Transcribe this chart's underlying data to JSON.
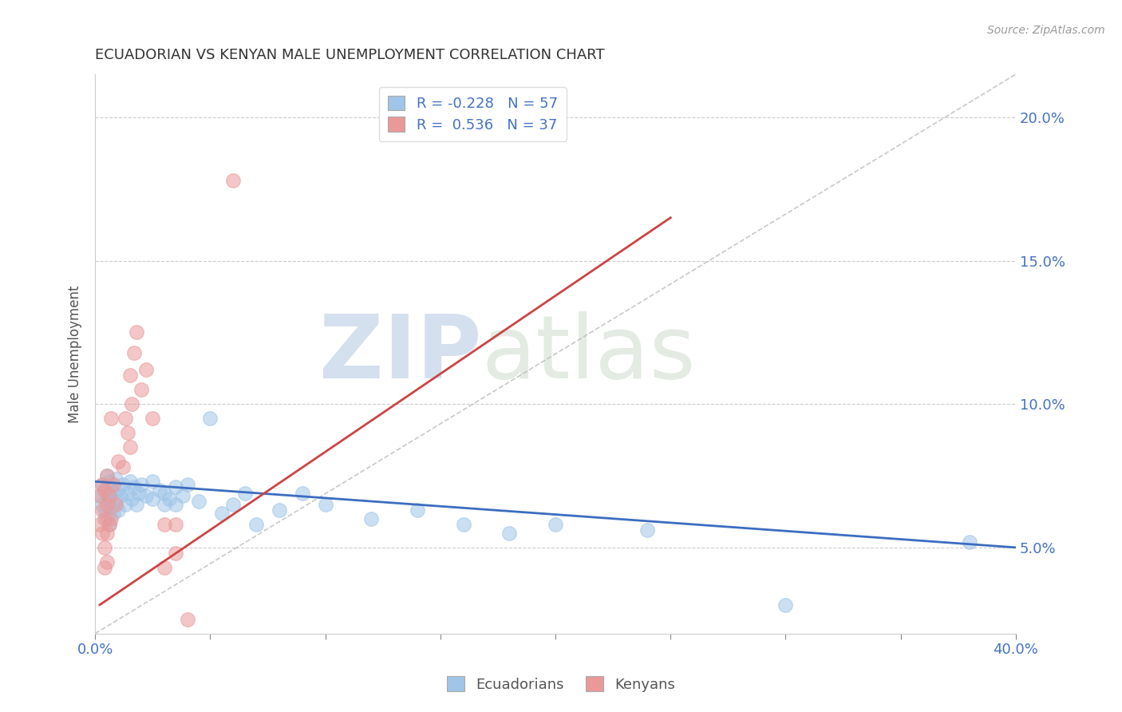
{
  "title": "ECUADORIAN VS KENYAN MALE UNEMPLOYMENT CORRELATION CHART",
  "source": "Source: ZipAtlas.com",
  "ylabel": "Male Unemployment",
  "xlim": [
    0.0,
    0.4
  ],
  "ylim": [
    0.02,
    0.215
  ],
  "xticks": [
    0.0,
    0.05,
    0.1,
    0.15,
    0.2,
    0.25,
    0.3,
    0.35,
    0.4
  ],
  "xticklabels": [
    "0.0%",
    "",
    "",
    "",
    "",
    "",
    "",
    "",
    "40.0%"
  ],
  "ytick_positions": [
    0.05,
    0.1,
    0.15,
    0.2
  ],
  "ytick_labels": [
    "5.0%",
    "10.0%",
    "15.0%",
    "20.0%"
  ],
  "legend_text1": "R = -0.228   N = 57",
  "legend_text2": "R =  0.536   N = 37",
  "ecuadorian_color": "#9fc5e8",
  "kenyan_color": "#ea9999",
  "ecuadorian_trend_color": "#3c6dbf",
  "kenyan_trend_color": "#cc4444",
  "watermark_zip": "ZIP",
  "watermark_atlas": "atlas",
  "watermark_color": "#c8d8ee",
  "ecuador_points": [
    [
      0.002,
      0.068
    ],
    [
      0.003,
      0.072
    ],
    [
      0.003,
      0.065
    ],
    [
      0.004,
      0.07
    ],
    [
      0.004,
      0.063
    ],
    [
      0.005,
      0.075
    ],
    [
      0.005,
      0.068
    ],
    [
      0.005,
      0.06
    ],
    [
      0.006,
      0.073
    ],
    [
      0.006,
      0.067
    ],
    [
      0.006,
      0.058
    ],
    [
      0.007,
      0.071
    ],
    [
      0.007,
      0.064
    ],
    [
      0.008,
      0.069
    ],
    [
      0.008,
      0.062
    ],
    [
      0.009,
      0.074
    ],
    [
      0.009,
      0.066
    ],
    [
      0.01,
      0.07
    ],
    [
      0.01,
      0.063
    ],
    [
      0.011,
      0.068
    ],
    [
      0.012,
      0.072
    ],
    [
      0.013,
      0.065
    ],
    [
      0.014,
      0.069
    ],
    [
      0.015,
      0.073
    ],
    [
      0.016,
      0.067
    ],
    [
      0.017,
      0.071
    ],
    [
      0.018,
      0.065
    ],
    [
      0.019,
      0.069
    ],
    [
      0.02,
      0.072
    ],
    [
      0.022,
      0.068
    ],
    [
      0.025,
      0.073
    ],
    [
      0.025,
      0.067
    ],
    [
      0.028,
      0.07
    ],
    [
      0.03,
      0.065
    ],
    [
      0.03,
      0.069
    ],
    [
      0.032,
      0.067
    ],
    [
      0.035,
      0.071
    ],
    [
      0.035,
      0.065
    ],
    [
      0.038,
      0.068
    ],
    [
      0.04,
      0.072
    ],
    [
      0.045,
      0.066
    ],
    [
      0.05,
      0.095
    ],
    [
      0.055,
      0.062
    ],
    [
      0.06,
      0.065
    ],
    [
      0.065,
      0.069
    ],
    [
      0.07,
      0.058
    ],
    [
      0.08,
      0.063
    ],
    [
      0.09,
      0.069
    ],
    [
      0.1,
      0.065
    ],
    [
      0.12,
      0.06
    ],
    [
      0.14,
      0.063
    ],
    [
      0.16,
      0.058
    ],
    [
      0.18,
      0.055
    ],
    [
      0.2,
      0.058
    ],
    [
      0.24,
      0.056
    ],
    [
      0.3,
      0.03
    ],
    [
      0.38,
      0.052
    ]
  ],
  "kenya_points": [
    [
      0.002,
      0.068
    ],
    [
      0.002,
      0.058
    ],
    [
      0.003,
      0.072
    ],
    [
      0.003,
      0.063
    ],
    [
      0.003,
      0.055
    ],
    [
      0.004,
      0.07
    ],
    [
      0.004,
      0.06
    ],
    [
      0.004,
      0.05
    ],
    [
      0.004,
      0.043
    ],
    [
      0.005,
      0.075
    ],
    [
      0.005,
      0.065
    ],
    [
      0.005,
      0.055
    ],
    [
      0.005,
      0.045
    ],
    [
      0.006,
      0.068
    ],
    [
      0.006,
      0.058
    ],
    [
      0.007,
      0.095
    ],
    [
      0.007,
      0.06
    ],
    [
      0.008,
      0.072
    ],
    [
      0.009,
      0.065
    ],
    [
      0.01,
      0.08
    ],
    [
      0.012,
      0.078
    ],
    [
      0.013,
      0.095
    ],
    [
      0.014,
      0.09
    ],
    [
      0.015,
      0.085
    ],
    [
      0.015,
      0.11
    ],
    [
      0.016,
      0.1
    ],
    [
      0.017,
      0.118
    ],
    [
      0.018,
      0.125
    ],
    [
      0.02,
      0.105
    ],
    [
      0.022,
      0.112
    ],
    [
      0.025,
      0.095
    ],
    [
      0.03,
      0.043
    ],
    [
      0.03,
      0.058
    ],
    [
      0.035,
      0.048
    ],
    [
      0.035,
      0.058
    ],
    [
      0.04,
      0.025
    ],
    [
      0.06,
      0.178
    ]
  ],
  "ecu_trend": [
    0.0,
    0.4,
    0.073,
    0.05
  ],
  "ken_trend": [
    0.002,
    0.25,
    0.03,
    0.165
  ],
  "ref_line": [
    0.0,
    0.02,
    0.4,
    0.215
  ]
}
